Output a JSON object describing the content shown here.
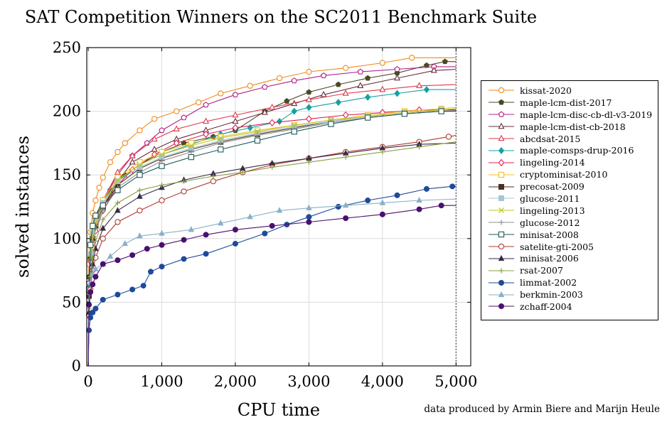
{
  "chart_data": {
    "type": "line",
    "title": "SAT Competition Winners on the SC2011 Benchmark Suite",
    "xlabel": "CPU time",
    "ylabel": "solved instances",
    "xlim": [
      -20,
      5200
    ],
    "ylim": [
      0,
      250
    ],
    "x_ticks": [
      0,
      1000,
      2000,
      3000,
      4000,
      5000
    ],
    "x_tick_labels": [
      "0",
      "1,000",
      "2,000",
      "3,000",
      "4,000",
      "5,000"
    ],
    "y_ticks": [
      0,
      50,
      100,
      150,
      200,
      250
    ],
    "y_tick_labels": [
      "0",
      "50",
      "100",
      "150",
      "200",
      "250"
    ],
    "timeout_line_x": 5000,
    "grid": true,
    "legend_position": "right",
    "series": [
      {
        "name": "kissat-2020",
        "color": "#f08a1c",
        "marker": "circle-open",
        "x": [
          0,
          10,
          30,
          60,
          100,
          150,
          200,
          300,
          400,
          500,
          700,
          900,
          1200,
          1500,
          1800,
          2200,
          2600,
          3000,
          3500,
          4000,
          4400,
          5000
        ],
        "y": [
          0,
          80,
          105,
          120,
          130,
          140,
          148,
          160,
          168,
          175,
          185,
          194,
          200,
          207,
          214,
          220,
          226,
          231,
          234,
          238,
          242,
          242
        ]
      },
      {
        "name": "maple-lcm-dist-2017",
        "color": "#4a4a25",
        "marker": "pentagon-filled",
        "x": [
          0,
          10,
          30,
          60,
          100,
          200,
          300,
          500,
          700,
          1000,
          1300,
          1700,
          2000,
          2400,
          2700,
          3000,
          3400,
          3800,
          4200,
          4600,
          4850,
          5000
        ],
        "y": [
          0,
          70,
          95,
          110,
          118,
          130,
          138,
          150,
          158,
          168,
          175,
          180,
          185,
          200,
          208,
          215,
          221,
          226,
          230,
          236,
          239,
          239
        ]
      },
      {
        "name": "maple-lcm-disc-cb-dl-v3-2019",
        "color": "#b0208a",
        "marker": "pentagon-open",
        "x": [
          0,
          10,
          30,
          60,
          100,
          200,
          400,
          600,
          800,
          1000,
          1300,
          1600,
          2000,
          2400,
          2800,
          3200,
          3700,
          4200,
          4700,
          5000
        ],
        "y": [
          0,
          65,
          90,
          105,
          115,
          130,
          150,
          165,
          175,
          185,
          195,
          205,
          213,
          219,
          224,
          228,
          231,
          233,
          235,
          235
        ]
      },
      {
        "name": "maple-lcm-dist-cb-2018",
        "color": "#6b2e3a",
        "marker": "triangle-open",
        "x": [
          0,
          10,
          30,
          60,
          100,
          200,
          400,
          600,
          900,
          1200,
          1600,
          2000,
          2400,
          2800,
          3200,
          3700,
          4200,
          4700,
          5000
        ],
        "y": [
          0,
          60,
          85,
          100,
          110,
          125,
          145,
          160,
          170,
          178,
          185,
          192,
          199,
          206,
          213,
          220,
          226,
          232,
          233
        ]
      },
      {
        "name": "abcdsat-2015",
        "color": "#e03a4a",
        "marker": "triangle-open",
        "x": [
          0,
          10,
          30,
          60,
          100,
          200,
          400,
          600,
          900,
          1200,
          1600,
          2000,
          2500,
          3000,
          3500,
          4000,
          4500,
          5000
        ],
        "y": [
          0,
          60,
          85,
          100,
          112,
          130,
          152,
          165,
          178,
          186,
          192,
          197,
          203,
          209,
          214,
          217,
          220,
          221
        ]
      },
      {
        "name": "maple-comsps-drup-2016",
        "color": "#14a0a0",
        "marker": "diamond-filled",
        "x": [
          0,
          10,
          30,
          60,
          100,
          200,
          400,
          700,
          1000,
          1400,
          1800,
          2200,
          2600,
          2800,
          3000,
          3400,
          3800,
          4200,
          4600,
          5000
        ],
        "y": [
          0,
          62,
          88,
          102,
          112,
          128,
          146,
          158,
          166,
          174,
          182,
          187,
          192,
          200,
          203,
          207,
          211,
          214,
          217,
          217
        ]
      },
      {
        "name": "lingeling-2014",
        "color": "#e0205a",
        "marker": "diamond-open",
        "x": [
          0,
          10,
          30,
          60,
          100,
          200,
          400,
          600,
          900,
          1200,
          1600,
          2000,
          2500,
          3000,
          3500,
          4000,
          4500,
          5000
        ],
        "y": [
          0,
          58,
          82,
          96,
          106,
          122,
          142,
          154,
          166,
          175,
          182,
          187,
          191,
          194,
          197,
          199,
          201,
          201
        ]
      },
      {
        "name": "cryptominisat-2010",
        "color": "#f2c020",
        "marker": "square-open",
        "x": [
          0,
          10,
          30,
          60,
          100,
          200,
          400,
          700,
          1000,
          1400,
          1800,
          2300,
          2800,
          3300,
          3800,
          4300,
          4800,
          5000
        ],
        "y": [
          0,
          60,
          90,
          105,
          115,
          130,
          148,
          160,
          168,
          175,
          180,
          185,
          189,
          193,
          197,
          200,
          202,
          203
        ]
      },
      {
        "name": "precosat-2009",
        "color": "#4a3020",
        "marker": "square-filled",
        "x": [
          0,
          10,
          30,
          60,
          100,
          200,
          400,
          700,
          1000,
          1400,
          1800,
          2300,
          2800,
          3300,
          3800,
          4300,
          4800,
          5000
        ],
        "y": [
          0,
          55,
          85,
          100,
          110,
          125,
          142,
          155,
          163,
          170,
          176,
          182,
          187,
          192,
          196,
          199,
          201,
          201
        ]
      },
      {
        "name": "glucose-2011",
        "color": "#a8c4d8",
        "marker": "square-filled",
        "x": [
          0,
          10,
          30,
          60,
          100,
          200,
          400,
          700,
          1000,
          1400,
          1800,
          2300,
          2800,
          3300,
          3800,
          4300,
          4800,
          5000
        ],
        "y": [
          0,
          60,
          88,
          104,
          114,
          128,
          145,
          156,
          164,
          171,
          177,
          183,
          188,
          192,
          196,
          199,
          201,
          202
        ]
      },
      {
        "name": "lingeling-2013",
        "color": "#c0c820",
        "marker": "x",
        "x": [
          0,
          10,
          30,
          60,
          100,
          200,
          400,
          700,
          1000,
          1400,
          1800,
          2300,
          2800,
          3300,
          3800,
          4300,
          4800,
          5000
        ],
        "y": [
          0,
          58,
          85,
          102,
          112,
          126,
          146,
          158,
          166,
          173,
          179,
          184,
          189,
          193,
          196,
          199,
          201,
          202
        ]
      },
      {
        "name": "glucose-2012",
        "color": "#909090",
        "marker": "plus",
        "x": [
          0,
          10,
          30,
          60,
          100,
          200,
          400,
          700,
          1000,
          1400,
          1800,
          2300,
          2800,
          3300,
          3800,
          4300,
          4800,
          5000
        ],
        "y": [
          0,
          56,
          82,
          98,
          108,
          122,
          140,
          152,
          161,
          168,
          175,
          181,
          186,
          191,
          195,
          198,
          200,
          200
        ]
      },
      {
        "name": "minisat-2008",
        "color": "#1e5a5a",
        "marker": "square-open",
        "x": [
          0,
          10,
          30,
          60,
          100,
          200,
          400,
          700,
          1000,
          1400,
          1800,
          2300,
          2800,
          3300,
          3800,
          4300,
          4800,
          5000
        ],
        "y": [
          0,
          60,
          95,
          110,
          118,
          126,
          138,
          150,
          157,
          164,
          170,
          177,
          184,
          190,
          195,
          198,
          200,
          200
        ]
      },
      {
        "name": "satelite-gti-2005",
        "color": "#b03a30",
        "marker": "circle-open",
        "x": [
          0,
          10,
          30,
          60,
          100,
          200,
          400,
          700,
          1000,
          1300,
          1700,
          2100,
          2500,
          3000,
          3500,
          4000,
          4500,
          4900,
          5000
        ],
        "y": [
          0,
          40,
          60,
          75,
          85,
          100,
          113,
          122,
          130,
          137,
          145,
          152,
          158,
          163,
          168,
          172,
          176,
          180,
          181
        ]
      },
      {
        "name": "minisat-2006",
        "color": "#3a2a48",
        "marker": "triangle-filled",
        "x": [
          0,
          10,
          30,
          60,
          100,
          200,
          400,
          700,
          1000,
          1300,
          1700,
          2100,
          2500,
          3000,
          3500,
          4000,
          4500,
          5000
        ],
        "y": [
          0,
          42,
          65,
          80,
          92,
          108,
          122,
          133,
          140,
          146,
          151,
          155,
          159,
          163,
          167,
          171,
          174,
          175
        ]
      },
      {
        "name": "rsat-2007",
        "color": "#8aa040",
        "marker": "plus",
        "x": [
          0,
          10,
          30,
          60,
          100,
          200,
          400,
          700,
          1000,
          1300,
          1700,
          2100,
          2500,
          3000,
          3500,
          4000,
          4500,
          5000
        ],
        "y": [
          0,
          45,
          70,
          85,
          98,
          115,
          128,
          138,
          142,
          145,
          149,
          152,
          156,
          160,
          164,
          168,
          172,
          176
        ]
      },
      {
        "name": "limmat-2002",
        "color": "#1e4a9a",
        "marker": "circle-filled",
        "x": [
          0,
          10,
          30,
          60,
          100,
          200,
          400,
          600,
          750,
          850,
          1000,
          1300,
          1600,
          2000,
          2400,
          2700,
          3000,
          3400,
          3800,
          4200,
          4600,
          4950,
          5000
        ],
        "y": [
          0,
          28,
          38,
          42,
          45,
          52,
          56,
          60,
          63,
          74,
          78,
          84,
          88,
          96,
          104,
          111,
          117,
          125,
          130,
          134,
          139,
          141,
          141
        ]
      },
      {
        "name": "berkmin-2003",
        "color": "#8ab0c8",
        "marker": "triangle-filled",
        "x": [
          0,
          10,
          30,
          60,
          100,
          200,
          300,
          500,
          700,
          1000,
          1400,
          1800,
          2200,
          2600,
          3000,
          3500,
          4000,
          4500,
          5000
        ],
        "y": [
          0,
          50,
          65,
          72,
          76,
          80,
          86,
          96,
          102,
          104,
          107,
          112,
          117,
          122,
          124,
          126,
          128,
          130,
          131
        ]
      },
      {
        "name": "zchaff-2004",
        "color": "#4a1070",
        "marker": "circle-filled",
        "x": [
          0,
          10,
          30,
          60,
          100,
          200,
          400,
          600,
          800,
          1000,
          1300,
          1600,
          2000,
          2500,
          3000,
          3500,
          4000,
          4500,
          4800,
          5000
        ],
        "y": [
          0,
          48,
          58,
          64,
          70,
          80,
          83,
          87,
          92,
          95,
          99,
          103,
          107,
          110,
          113,
          116,
          119,
          123,
          126,
          126
        ]
      }
    ]
  },
  "credit": "data produced by Armin Biere and Marijn Heule"
}
